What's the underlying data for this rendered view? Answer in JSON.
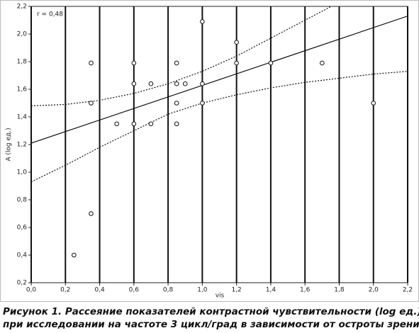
{
  "chart_data": {
    "type": "scatter",
    "annotation": "r = 0,48",
    "xlabel": "vis",
    "ylabel": "A (log ед.)",
    "xlim": [
      0,
      2.2
    ],
    "ylim": [
      0.2,
      2.2
    ],
    "xticks": [
      {
        "value": 0,
        "label": "0,0"
      },
      {
        "value": 0.2,
        "label": "0,2"
      },
      {
        "value": 0.4,
        "label": "0,4"
      },
      {
        "value": 0.6,
        "label": "0,6"
      },
      {
        "value": 0.8,
        "label": "0,8"
      },
      {
        "value": 1,
        "label": "1,0"
      },
      {
        "value": 1.2,
        "label": "1,2"
      },
      {
        "value": 1.4,
        "label": "1,4"
      },
      {
        "value": 1.6,
        "label": "1,6"
      },
      {
        "value": 1.8,
        "label": "1,8"
      },
      {
        "value": 2,
        "label": "2,0"
      },
      {
        "value": 2.2,
        "label": "2,2"
      }
    ],
    "yticks": [
      {
        "value": 0.2,
        "label": "0,2"
      },
      {
        "value": 0.4,
        "label": "0,4"
      },
      {
        "value": 0.6,
        "label": "0,6"
      },
      {
        "value": 0.8,
        "label": "0,8"
      },
      {
        "value": 1,
        "label": "1,0"
      },
      {
        "value": 1.2,
        "label": "1,2"
      },
      {
        "value": 1.4,
        "label": "1,4"
      },
      {
        "value": 1.6,
        "label": "1,6"
      },
      {
        "value": 1.8,
        "label": "1,8"
      },
      {
        "value": 2,
        "label": "2,0"
      },
      {
        "value": 2.2,
        "label": "2,2"
      }
    ],
    "grid": "x",
    "series": [
      {
        "color": "#111111",
        "x": [
          0.25,
          0.35,
          0.35,
          0.35,
          0.5,
          0.6,
          0.6,
          0.6,
          0.7,
          0.7,
          0.85,
          0.85,
          0.85,
          0.85,
          0.9,
          1.0,
          1.0,
          1.0,
          1.2,
          1.2,
          1.4,
          1.7,
          2.0
        ],
        "values": [
          0.4,
          0.7,
          1.5,
          1.79,
          1.35,
          1.35,
          1.64,
          1.79,
          1.35,
          1.64,
          1.35,
          1.5,
          1.64,
          1.79,
          1.64,
          1.5,
          1.64,
          2.09,
          1.79,
          1.94,
          1.79,
          1.79,
          1.5
        ]
      }
    ],
    "lines": [
      {
        "style": "solid",
        "color": "#111111",
        "x": [
          0,
          2.2
        ],
        "values": [
          1.21,
          2.13
        ]
      },
      {
        "style": "dotted",
        "color": "#111111",
        "x": [
          0,
          0.2,
          0.4,
          0.6,
          0.8,
          1.0,
          1.2,
          1.4,
          1.6,
          1.8
        ],
        "values": [
          1.48,
          1.49,
          1.52,
          1.57,
          1.64,
          1.73,
          1.84,
          1.97,
          2.1,
          2.23
        ]
      },
      {
        "style": "dotted",
        "color": "#111111",
        "x": [
          0,
          0.2,
          0.4,
          0.6,
          0.8,
          1.0,
          1.2,
          1.4,
          1.6,
          1.8,
          2.0,
          2.2
        ],
        "values": [
          0.93,
          1.05,
          1.18,
          1.3,
          1.42,
          1.5,
          1.56,
          1.61,
          1.65,
          1.68,
          1.71,
          1.73
        ]
      }
    ]
  },
  "caption": {
    "lines": [
      "Рисунок 1. Рассеяние показателей контрастной чувствительности (log ед.)",
      "при исследовании на частоте 3 цикл/град в зависимости от остроты зрения"
    ]
  }
}
